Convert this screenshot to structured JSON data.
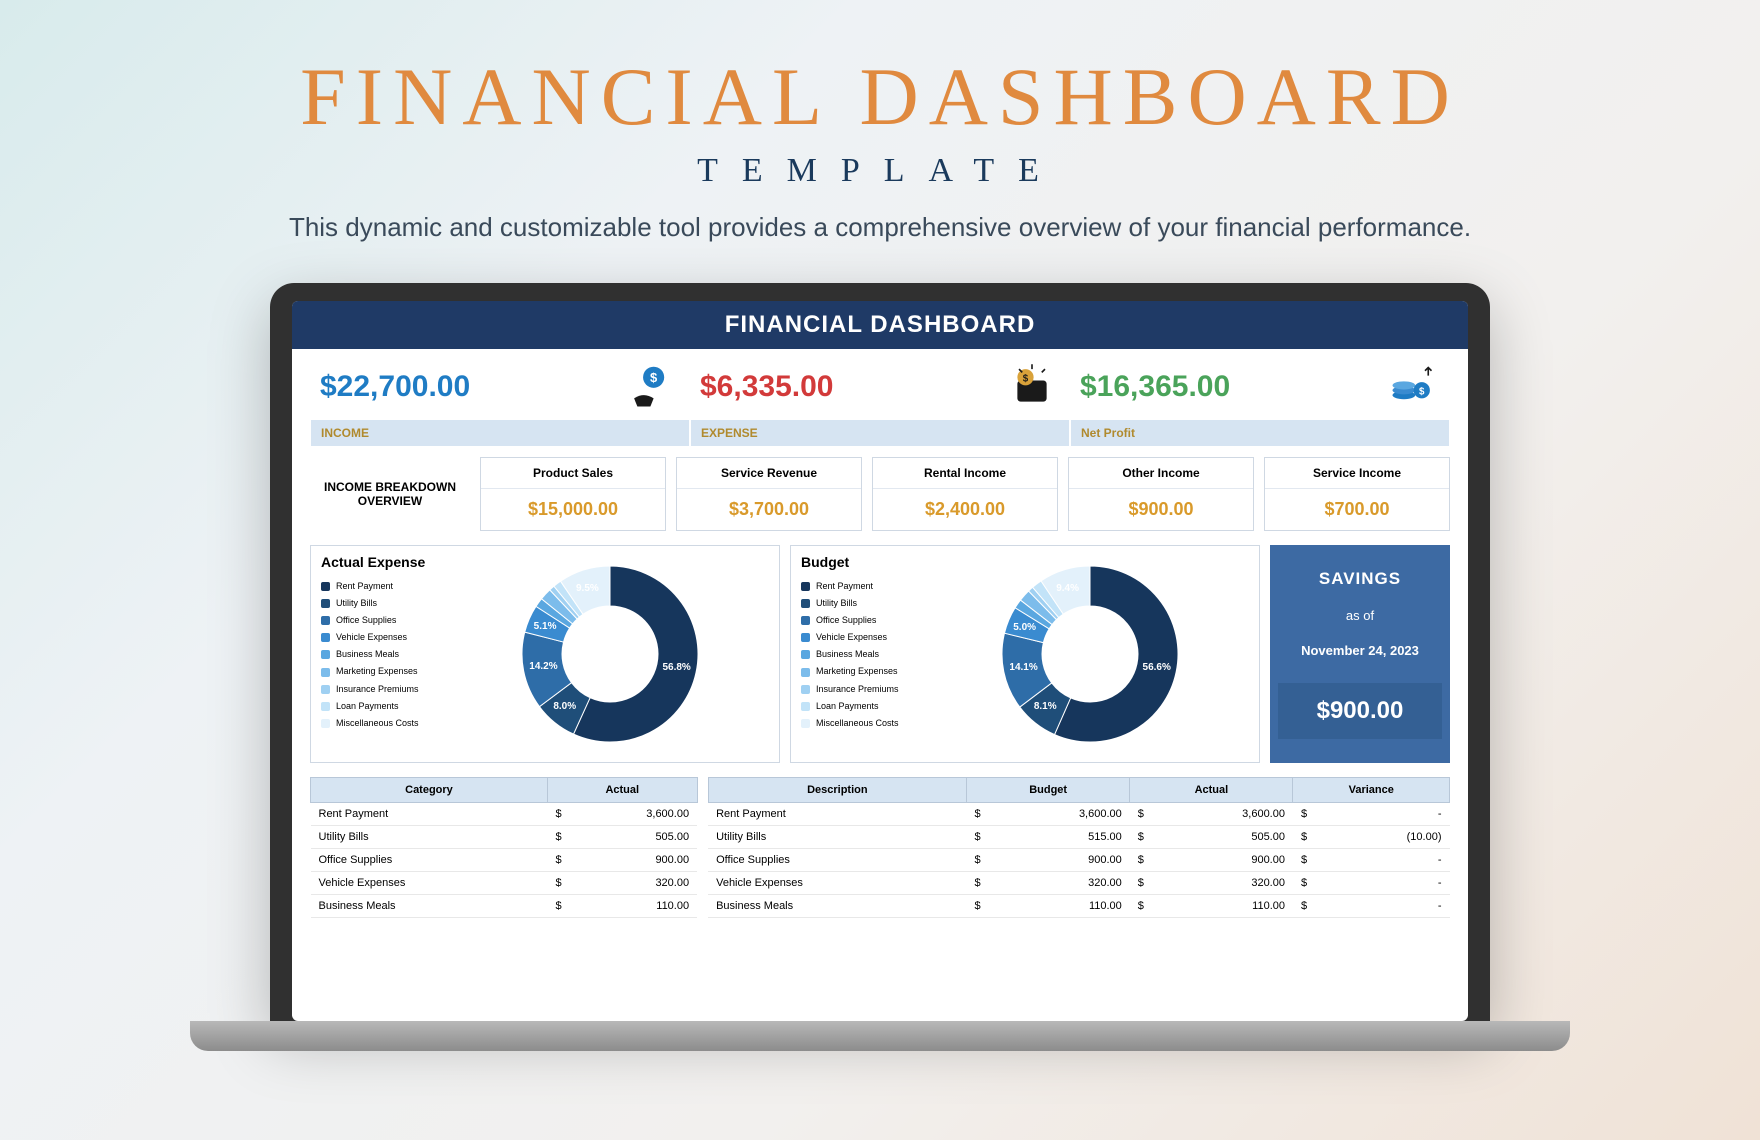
{
  "hero": {
    "title": "FINANCIAL DASHBOARD",
    "subtitle": "TEMPLATE",
    "description": "This dynamic and customizable tool provides a comprehensive overview of your financial performance.",
    "title_color": "#e08a3f",
    "subtitle_color": "#1a3a5c"
  },
  "dash": {
    "title": "FINANCIAL DASHBOARD",
    "header_bg": "#1f3a66"
  },
  "kpis": {
    "income": {
      "value": "$22,700.00",
      "color": "#1f7cc4",
      "label": "INCOME",
      "label_color": "#b08a2e"
    },
    "expense": {
      "value": "$6,335.00",
      "color": "#d23a3a",
      "label": "EXPENSE",
      "label_color": "#b08a2e"
    },
    "netprofit": {
      "value": "$16,365.00",
      "color": "#4aa35a",
      "label": "Net Profit",
      "label_color": "#b08a2e"
    }
  },
  "income_breakdown": {
    "heading": "INCOME BREAKDOWN OVERVIEW",
    "items": [
      {
        "label": "Product Sales",
        "value": "$15,000.00"
      },
      {
        "label": "Service Revenue",
        "value": "$3,700.00"
      },
      {
        "label": "Rental Income",
        "value": "$2,400.00"
      },
      {
        "label": "Other Income",
        "value": "$900.00"
      },
      {
        "label": "Service Income",
        "value": "$700.00"
      }
    ],
    "value_color": "#d99a2b"
  },
  "donut_legend": [
    "Rent Payment",
    "Utility Bills",
    "Office Supplies",
    "Vehicle Expenses",
    "Business Meals",
    "Marketing Expenses",
    "Insurance Premiums",
    "Loan Payments",
    "Miscellaneous Costs"
  ],
  "donut_colors": [
    "#16365c",
    "#1f4e79",
    "#2e6da8",
    "#3a8bd0",
    "#5aa7e0",
    "#7cbceb",
    "#9fd0f2",
    "#c2e3f8",
    "#e3f1fb"
  ],
  "actual_chart": {
    "title": "Actual Expense",
    "pcts": [
      56.8,
      8.0,
      14.2,
      5.1,
      1.7,
      2.2,
      1.0,
      1.5,
      9.5
    ],
    "labels_shown": {
      "56.8": "56.8%",
      "8.0": "8.0%",
      "14.2": "14.2%",
      "5.1": "5.1%",
      "9.5": "9.5%"
    }
  },
  "budget_chart": {
    "title": "Budget",
    "pcts": [
      56.6,
      8.1,
      14.1,
      5.0,
      1.7,
      2.2,
      1.0,
      1.9,
      9.4
    ],
    "labels_shown": {
      "56.6": "56.6%",
      "8.1": "8.1%",
      "14.1": "14.1%",
      "5.0": "5.0%",
      "9.4": "9.4%"
    }
  },
  "savings": {
    "title": "SAVINGS",
    "asof": "as of",
    "date": "November 24, 2023",
    "amount": "$900.00",
    "panel_bg": "#3d6aa3"
  },
  "table_left": {
    "headers": [
      "Category",
      "Actual"
    ],
    "rows": [
      [
        "Rent Payment",
        "$",
        "3,600.00"
      ],
      [
        "Utility Bills",
        "$",
        "505.00"
      ],
      [
        "Office Supplies",
        "$",
        "900.00"
      ],
      [
        "Vehicle Expenses",
        "$",
        "320.00"
      ],
      [
        "Business Meals",
        "$",
        "110.00"
      ]
    ]
  },
  "table_right": {
    "headers": [
      "Description",
      "Budget",
      "Actual",
      "Variance"
    ],
    "rows": [
      [
        "Rent Payment",
        "$",
        "3,600.00",
        "$",
        "3,600.00",
        "$",
        "-"
      ],
      [
        "Utility Bills",
        "$",
        "515.00",
        "$",
        "505.00",
        "$",
        "(10.00)"
      ],
      [
        "Office Supplies",
        "$",
        "900.00",
        "$",
        "900.00",
        "$",
        "-"
      ],
      [
        "Vehicle Expenses",
        "$",
        "320.00",
        "$",
        "320.00",
        "$",
        "-"
      ],
      [
        "Business Meals",
        "$",
        "110.00",
        "$",
        "110.00",
        "$",
        "-"
      ]
    ]
  }
}
